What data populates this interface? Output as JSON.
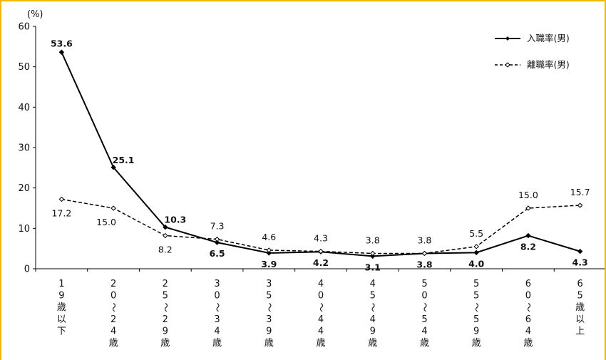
{
  "chart_data": {
    "type": "line",
    "unit_label": "(%)",
    "ylim": [
      0,
      60
    ],
    "yticks": [
      0,
      10,
      20,
      30,
      40,
      50,
      60
    ],
    "categories": [
      "19歳以下",
      "20～24歳",
      "25～29歳",
      "30～34歳",
      "35～39歳",
      "40～44歳",
      "45～49歳",
      "50～54歳",
      "55～59歳",
      "60～64歳",
      "65歳以上"
    ],
    "category_glyphs": [
      [
        "1",
        "9",
        "歳",
        "以",
        "下"
      ],
      [
        "2",
        "0",
        "～",
        "2",
        "4",
        "歳"
      ],
      [
        "2",
        "5",
        "～",
        "2",
        "9",
        "歳"
      ],
      [
        "3",
        "0",
        "～",
        "3",
        "4",
        "歳"
      ],
      [
        "3",
        "5",
        "～",
        "3",
        "9",
        "歳"
      ],
      [
        "4",
        "0",
        "～",
        "4",
        "4",
        "歳"
      ],
      [
        "4",
        "5",
        "～",
        "4",
        "9",
        "歳"
      ],
      [
        "5",
        "0",
        "～",
        "5",
        "4",
        "歳"
      ],
      [
        "5",
        "5",
        "～",
        "5",
        "9",
        "歳"
      ],
      [
        "6",
        "0",
        "～",
        "6",
        "4",
        "歳"
      ],
      [
        "6",
        "5",
        "歳",
        "以",
        "上"
      ]
    ],
    "series": [
      {
        "name": "入職率(男)",
        "style": "solid",
        "values": [
          53.6,
          25.1,
          10.3,
          6.5,
          3.9,
          4.2,
          3.1,
          3.8,
          4.0,
          8.2,
          4.3
        ],
        "labels": [
          "53.6",
          "25.1",
          "10.3",
          "6.5",
          "3.9",
          "4.2",
          "3.1",
          "3.8",
          "4.0",
          "8.2",
          "4.3"
        ]
      },
      {
        "name": "離職率(男)",
        "style": "dashed",
        "values": [
          17.2,
          15.0,
          8.2,
          7.3,
          4.6,
          4.3,
          3.8,
          3.8,
          5.5,
          15.0,
          15.7
        ],
        "labels": [
          "17.2",
          "15.0",
          "8.2",
          "7.3",
          "4.6",
          "4.3",
          "3.8",
          "3.8",
          "5.5",
          "15.0",
          "15.7"
        ]
      }
    ],
    "legend_position": "top-right",
    "grid": false,
    "colors": {
      "line": "#000000",
      "border": "#f5b800"
    }
  }
}
